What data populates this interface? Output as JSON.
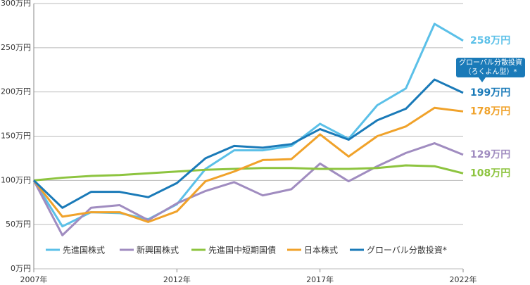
{
  "chart_data": {
    "type": "line",
    "x": [
      2007,
      2008,
      2009,
      2010,
      2011,
      2012,
      2013,
      2014,
      2015,
      2016,
      2017,
      2018,
      2019,
      2020,
      2021,
      2022
    ],
    "xlim": [
      2007,
      2022
    ],
    "xticks": [
      {
        "value": 2007,
        "label": "2007年"
      },
      {
        "value": 2012,
        "label": "2012年"
      },
      {
        "value": 2017,
        "label": "2017年"
      },
      {
        "value": 2022,
        "label": "2022年"
      }
    ],
    "ylim": [
      0,
      300
    ],
    "yticks": [
      {
        "value": 0,
        "label": "0万円"
      },
      {
        "value": 50,
        "label": "50万円"
      },
      {
        "value": 100,
        "label": "100万円"
      },
      {
        "value": 150,
        "label": "150万円"
      },
      {
        "value": 200,
        "label": "200万円"
      },
      {
        "value": 250,
        "label": "250万円"
      },
      {
        "value": 300,
        "label": "300万円"
      }
    ],
    "grid": true,
    "legend": "bottom",
    "annotation": [
      "グローバル分散投資",
      "（ろくよん型）*"
    ],
    "series": [
      {
        "name": "先進国株式",
        "color": "#5bc0e8",
        "values": [
          100,
          48,
          64,
          63,
          56,
          73,
          113,
          134,
          134,
          139,
          164,
          147,
          185,
          204,
          277,
          258
        ],
        "value_labels": [
          null,
          null,
          null,
          null,
          null,
          null,
          null,
          null,
          null,
          null,
          null,
          null,
          null,
          null,
          null,
          "258万円"
        ]
      },
      {
        "name": "新興国株式",
        "color": "#a08cc0",
        "values": [
          100,
          38,
          69,
          72,
          55,
          74,
          88,
          98,
          83,
          90,
          119,
          99,
          116,
          131,
          142,
          129
        ],
        "value_labels": [
          null,
          null,
          null,
          null,
          null,
          null,
          null,
          null,
          null,
          null,
          null,
          null,
          null,
          null,
          null,
          "129万円"
        ]
      },
      {
        "name": "先進国中短期国債",
        "color": "#8dc43f",
        "values": [
          100,
          103,
          105,
          106,
          108,
          110,
          112,
          113,
          114,
          114,
          113,
          113,
          114,
          117,
          116,
          108
        ],
        "value_labels": [
          null,
          null,
          null,
          null,
          null,
          null,
          null,
          null,
          null,
          null,
          null,
          null,
          null,
          null,
          null,
          "108万円"
        ]
      },
      {
        "name": "日本株式",
        "color": "#f0a22a",
        "values": [
          100,
          59,
          64,
          64,
          53,
          65,
          99,
          110,
          123,
          124,
          152,
          127,
          150,
          161,
          182,
          178
        ],
        "value_labels": [
          null,
          null,
          null,
          null,
          null,
          null,
          null,
          null,
          null,
          null,
          null,
          null,
          null,
          null,
          null,
          "178万円"
        ]
      },
      {
        "name": "グローバル分散投資*",
        "color": "#1a7ab8",
        "values": [
          100,
          69,
          87,
          87,
          81,
          97,
          125,
          139,
          137,
          141,
          158,
          146,
          168,
          181,
          214,
          199
        ],
        "value_labels": [
          null,
          null,
          null,
          null,
          null,
          null,
          null,
          null,
          null,
          null,
          null,
          null,
          null,
          null,
          null,
          "199万円"
        ]
      }
    ]
  }
}
